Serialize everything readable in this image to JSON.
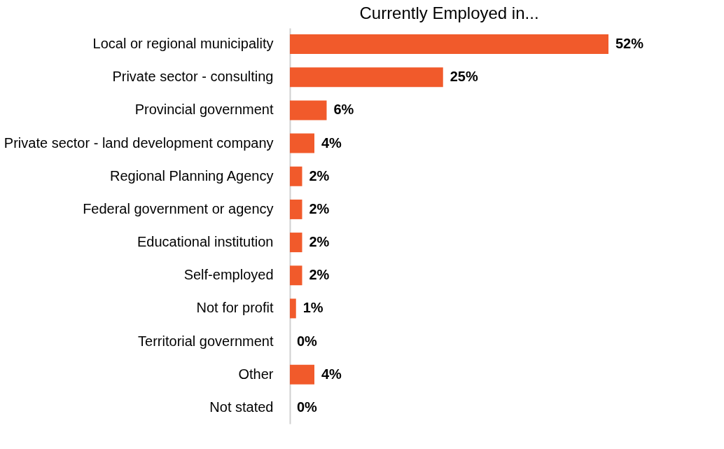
{
  "chart_data": {
    "type": "bar",
    "orientation": "horizontal",
    "title": "Currently Employed in...",
    "categories": [
      "Local or regional municipality",
      "Private sector - consulting",
      "Provincial government",
      "Private sector - land development company",
      "Regional Planning Agency",
      "Federal government or agency",
      "Educational institution",
      "Self-employed",
      "Not for profit",
      "Territorial government",
      "Other",
      "Not stated"
    ],
    "values": [
      52,
      25,
      6,
      4,
      2,
      2,
      2,
      2,
      1,
      0,
      4,
      0
    ],
    "value_labels": [
      "52%",
      "25%",
      "6%",
      "4%",
      "2%",
      "2%",
      "2%",
      "2%",
      "1%",
      "0%",
      "4%",
      "0%"
    ],
    "color": "#f15a2b",
    "grid": false
  }
}
